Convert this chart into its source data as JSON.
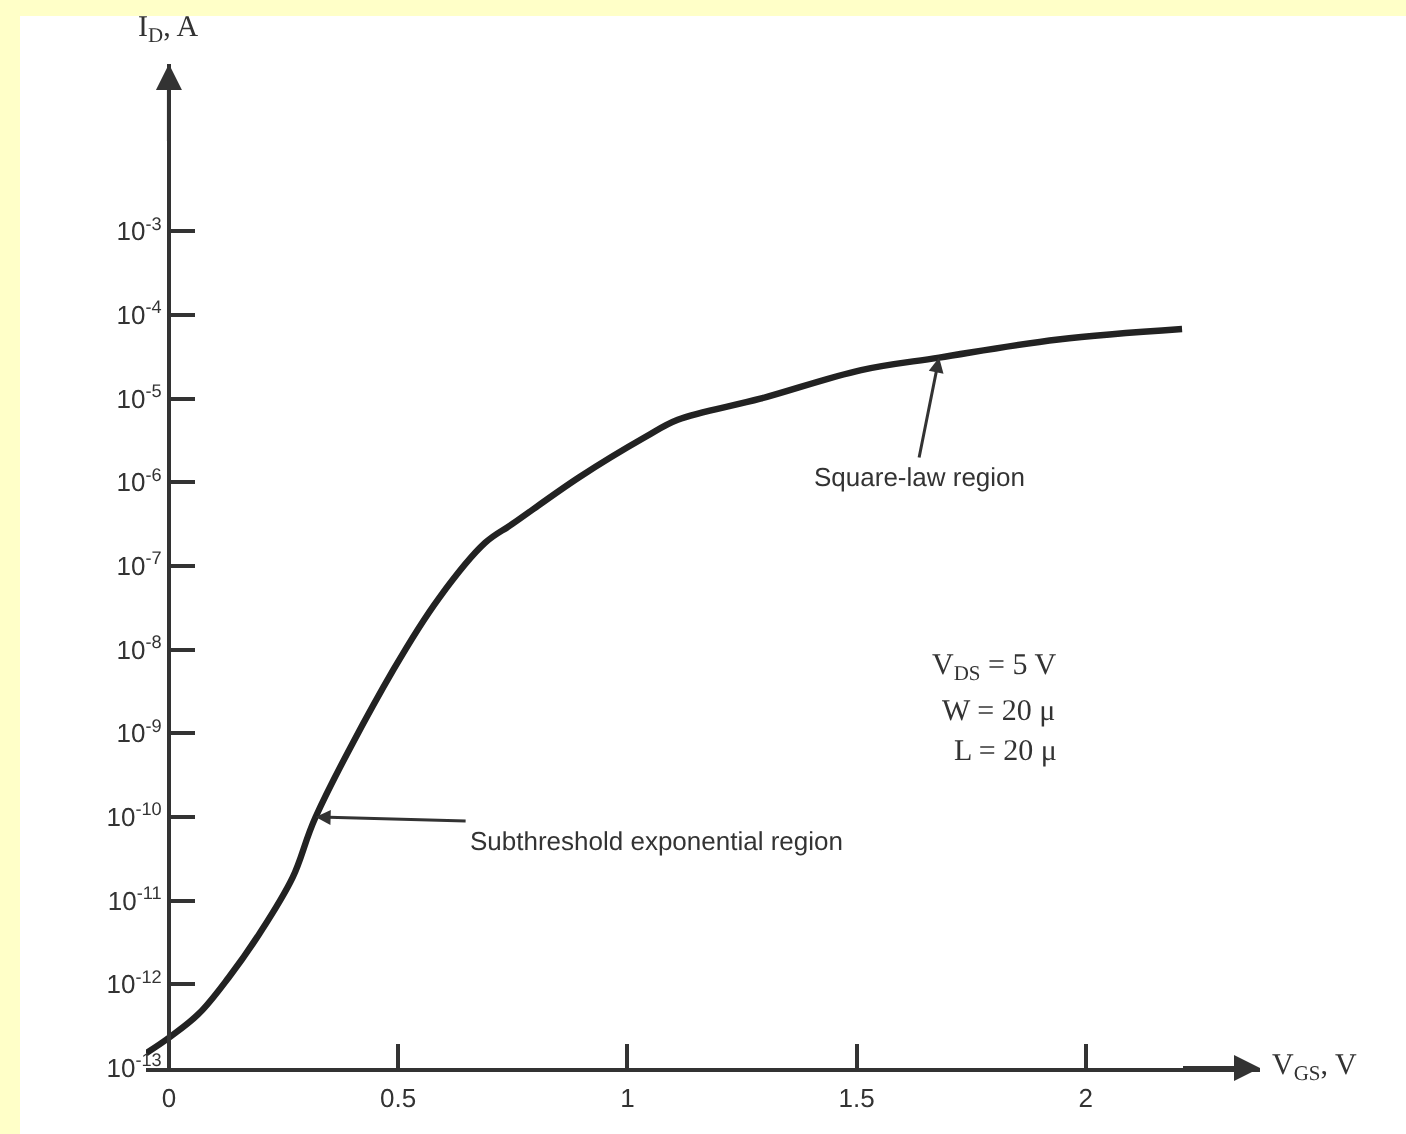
{
  "chart_data": {
    "type": "line",
    "xlabel": "V$_{GS}$, V",
    "ylabel": "I$_{D}$, A",
    "x": [
      -0.05,
      0,
      0.066,
      0.13,
      0.197,
      0.27,
      0.32,
      0.49,
      0.59,
      0.69,
      0.75,
      0.895,
      1.04,
      1.11,
      1.29,
      1.51,
      1.68,
      1.94,
      2.21
    ],
    "series": [
      {
        "color": "#222222",
        "values": [
          1.5e-13,
          2.3e-13,
          4.5e-13,
          1.2e-12,
          4e-12,
          1.9e-11,
          1e-10,
          5.8e-09,
          4.2e-08,
          1.9e-07,
          3.2e-07,
          1.15e-06,
          3.5e-06,
          5.6e-06,
          1e-05,
          2.2e-05,
          3.1e-05,
          5.1e-05,
          6.8e-05
        ]
      }
    ],
    "log": "y",
    "xlim": [
      -0.05,
      2.38
    ],
    "ylim": [
      1e-13,
      0.1
    ],
    "xticks": [
      0,
      0.5,
      1,
      1.5,
      2
    ],
    "yticks": [
      {
        "value": 1e-13,
        "label": "10$^{-13}$"
      },
      {
        "value": 1e-12,
        "label": "10$^{-12}$"
      },
      {
        "value": 1e-11,
        "label": "10$^{-11}$"
      },
      {
        "value": 1e-10,
        "label": "10$^{-10}$"
      },
      {
        "value": 1e-09,
        "label": "10$^{-9}$"
      },
      {
        "value": 1e-08,
        "label": "10$^{-8}$"
      },
      {
        "value": 1e-07,
        "label": "10$^{-7}$"
      },
      {
        "value": 1e-06,
        "label": "10$^{-6}$"
      },
      {
        "value": 1e-05,
        "label": "10$^{-5}$"
      },
      {
        "value": 0.0001,
        "label": "10$^{-4}$"
      },
      {
        "value": 0.001,
        "label": "10$^{-3}$"
      }
    ],
    "grid": false,
    "marker": "none",
    "line_style": "solid",
    "annotations": [
      {
        "text": "Square-law region",
        "x": 1.68,
        "y": 3.1e-05
      },
      {
        "text": "Subthreshold exponential region",
        "x": 0.32,
        "y": 1e-10
      },
      "V$_{DS}$ = 5 V",
      "W = 20 μ",
      "L = 20 μ"
    ]
  }
}
